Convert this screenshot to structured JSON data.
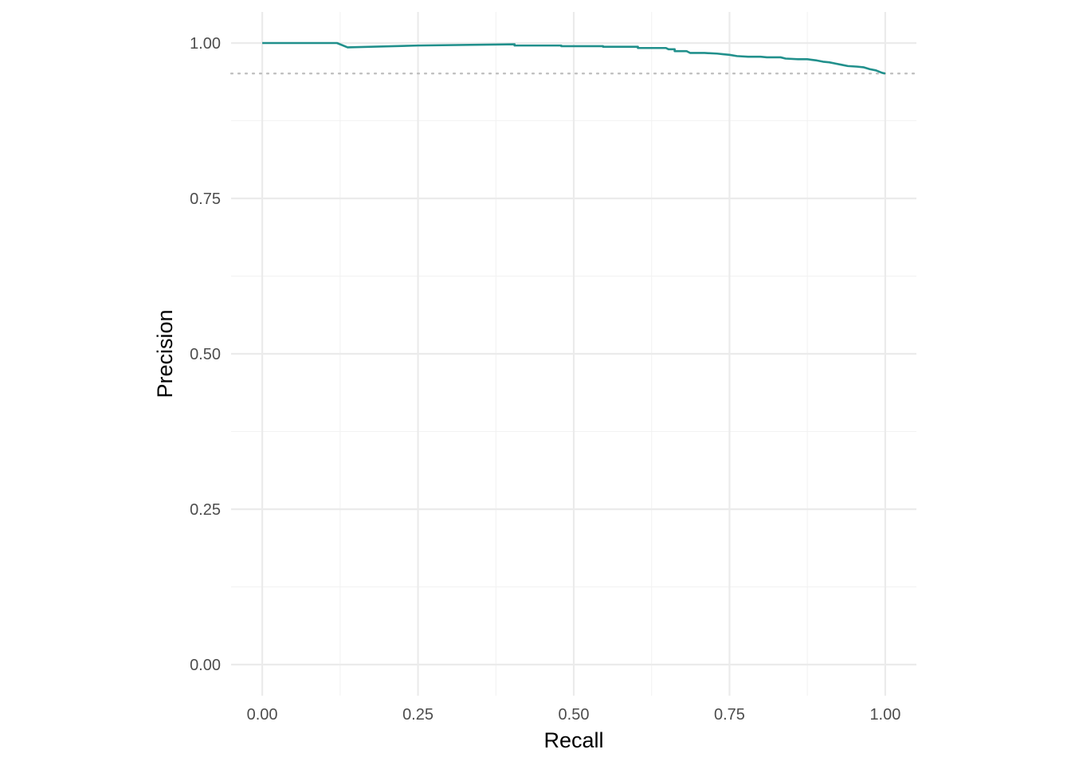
{
  "chart_data": {
    "type": "line",
    "title": "",
    "xlabel": "Recall",
    "ylabel": "Precision",
    "xlim": [
      -0.05,
      1.05
    ],
    "ylim": [
      -0.05,
      1.05
    ],
    "x_ticks": [
      "0.00",
      "0.25",
      "0.50",
      "0.75",
      "1.00"
    ],
    "y_ticks": [
      "0.00",
      "0.25",
      "0.50",
      "0.75",
      "1.00"
    ],
    "grid": true,
    "legend": "none",
    "line_color": "#21908C",
    "baseline": {
      "y": 0.951,
      "style": "dotted",
      "color": "#BDBDBD"
    },
    "series": [
      {
        "x": [
          0.0,
          0.12,
          0.137,
          0.25,
          0.405,
          0.405,
          0.48,
          0.48,
          0.547,
          0.547,
          0.603,
          0.603,
          0.648,
          0.652,
          0.662,
          0.662,
          0.681,
          0.687,
          0.71,
          0.73,
          0.74,
          0.75,
          0.762,
          0.78,
          0.8,
          0.81,
          0.832,
          0.84,
          0.86,
          0.875,
          0.882,
          0.89,
          0.9,
          0.91,
          0.92,
          0.93,
          0.94,
          0.955,
          0.965,
          0.975,
          0.985,
          0.995,
          1.0
        ],
        "y": [
          1.0,
          1.0,
          0.993,
          0.996,
          0.998,
          0.996,
          0.996,
          0.995,
          0.995,
          0.994,
          0.994,
          0.992,
          0.992,
          0.99,
          0.99,
          0.987,
          0.987,
          0.984,
          0.984,
          0.983,
          0.982,
          0.981,
          0.979,
          0.978,
          0.978,
          0.977,
          0.977,
          0.975,
          0.974,
          0.974,
          0.973,
          0.972,
          0.97,
          0.969,
          0.967,
          0.965,
          0.963,
          0.962,
          0.961,
          0.958,
          0.956,
          0.952,
          0.951
        ]
      }
    ]
  }
}
